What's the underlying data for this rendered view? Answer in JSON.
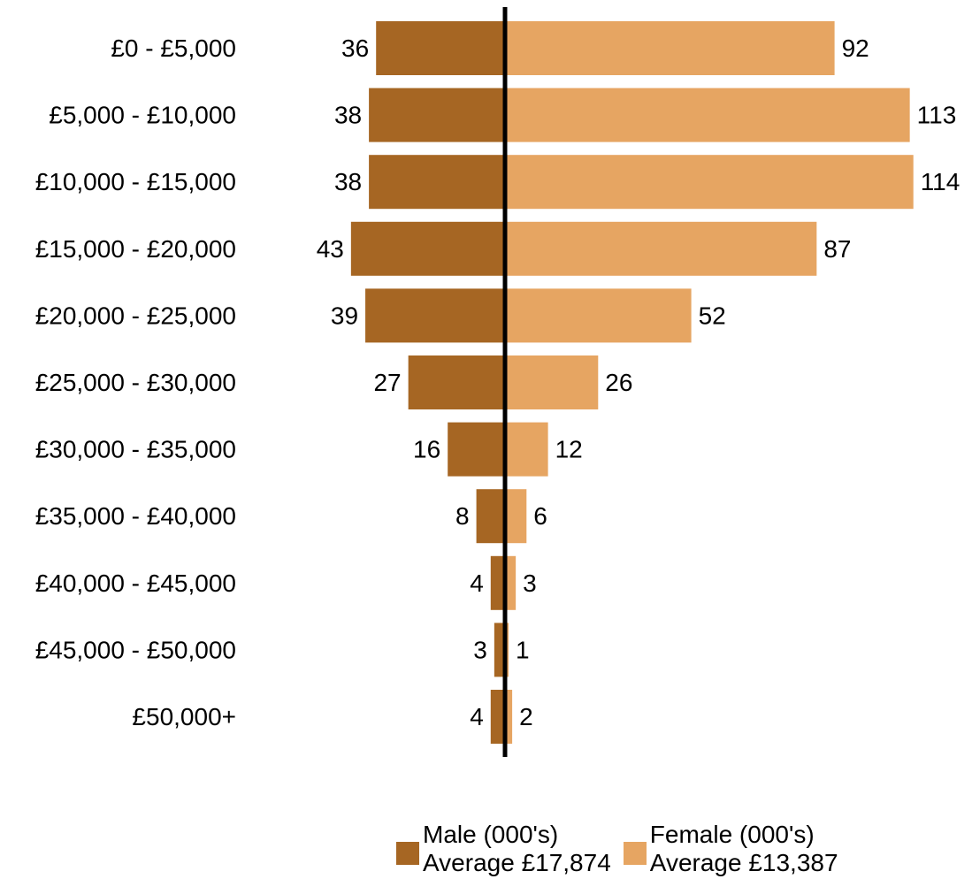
{
  "chart_data": {
    "type": "bar",
    "orientation": "horizontal-diverging",
    "categories": [
      "£0 - £5,000",
      "£5,000 - £10,000",
      "£10,000 - £15,000",
      "£15,000 - £20,000",
      "£20,000 - £25,000",
      "£25,000 - £30,000",
      "£30,000 - £35,000",
      "£35,000 - £40,000",
      "£40,000 - £45,000",
      "£45,000 - £50,000",
      "£50,000+"
    ],
    "series": [
      {
        "name": "Male (000's)",
        "subtitle": "Average £17,874",
        "color": "#a66623",
        "values": [
          36,
          38,
          38,
          43,
          39,
          27,
          16,
          8,
          4,
          3,
          4
        ]
      },
      {
        "name": "Female (000's)",
        "subtitle": "Average £13,387",
        "color": "#e6a562",
        "values": [
          92,
          113,
          114,
          87,
          52,
          26,
          12,
          6,
          3,
          1,
          2
        ]
      }
    ],
    "axis_line_color": "#000000",
    "grid": false,
    "legend_position": "bottom"
  }
}
